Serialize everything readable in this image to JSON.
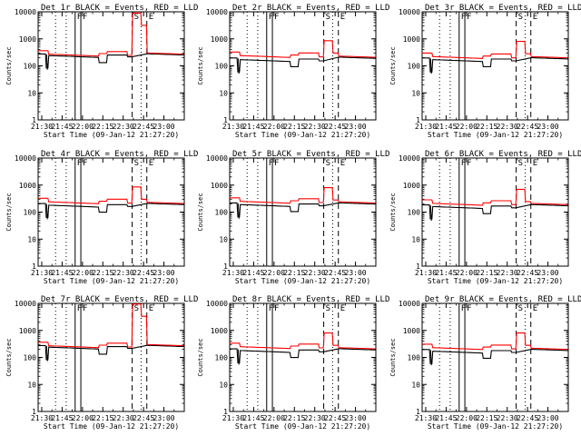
{
  "chart_data": {
    "type": "line",
    "layout": "3x3 grid of panels",
    "y_scale": "log",
    "ylim": [
      1,
      10000
    ],
    "ylabel": "Counts/sec",
    "xlabel": "Start Time (09-Jan-12 21:27:20)",
    "x_range_hours": [
      21.4556,
      23.25
    ],
    "x_ticks": [
      "21:30",
      "21:45",
      "22:00",
      "22:15",
      "22:30",
      "22:45",
      "23:00"
    ],
    "x_tick_hours": [
      21.5,
      21.75,
      22.0,
      22.25,
      22.5,
      22.75,
      23.0
    ],
    "y_tick_labels": [
      "1",
      "10",
      "100",
      "1000",
      "10000"
    ],
    "y_tick_values": [
      1,
      10,
      100,
      1000,
      10000
    ],
    "series_names": [
      "Events",
      "LLD"
    ],
    "series_colors": {
      "Events": "#000000",
      "LLD": "#ff0000"
    },
    "markers": [
      {
        "label": "F",
        "hour": 21.91,
        "style": "solid"
      },
      {
        "label": "F",
        "hour": 21.98,
        "style": "solid"
      },
      {
        "label": "S",
        "hour": 22.61,
        "style": "dashed"
      },
      {
        "label": "E",
        "hour": 22.79,
        "style": "dashed"
      }
    ],
    "dotted_lines_hours": [
      21.67,
      21.8,
      22.72
    ],
    "panels": [
      {
        "title": "Det 1r BLACK = Events, RED = LLD",
        "base_events": 240,
        "base_lld": 270,
        "spike": 9000,
        "late_events": 280,
        "late_lld": 300
      },
      {
        "title": "Det 2r BLACK = Events, RED = LLD",
        "base_events": 170,
        "base_lld": 240,
        "spike": 850,
        "late_events": 210,
        "late_lld": 230
      },
      {
        "title": "Det 3r BLACK = Events, RED = LLD",
        "base_events": 170,
        "base_lld": 220,
        "spike": 800,
        "late_events": 200,
        "late_lld": 220
      },
      {
        "title": "Det 4r BLACK = Events, RED = LLD",
        "base_events": 180,
        "base_lld": 240,
        "spike": 850,
        "late_events": 210,
        "late_lld": 230
      },
      {
        "title": "Det 5r BLACK = Events, RED = LLD",
        "base_events": 190,
        "base_lld": 250,
        "spike": 800,
        "late_events": 220,
        "late_lld": 240
      },
      {
        "title": "Det 6r BLACK = Events, RED = LLD",
        "base_events": 160,
        "base_lld": 210,
        "spike": 700,
        "late_events": 190,
        "late_lld": 210
      },
      {
        "title": "Det 7r BLACK = Events, RED = LLD",
        "base_events": 240,
        "base_lld": 270,
        "spike": 9500,
        "late_events": 280,
        "late_lld": 300
      },
      {
        "title": "Det 8r BLACK = Events, RED = LLD",
        "base_events": 180,
        "base_lld": 250,
        "spike": 800,
        "late_events": 210,
        "late_lld": 230
      },
      {
        "title": "Det 9r BLACK = Events, RED = LLD",
        "base_events": 170,
        "base_lld": 230,
        "spike": 800,
        "late_events": 200,
        "late_lld": 220
      }
    ]
  }
}
